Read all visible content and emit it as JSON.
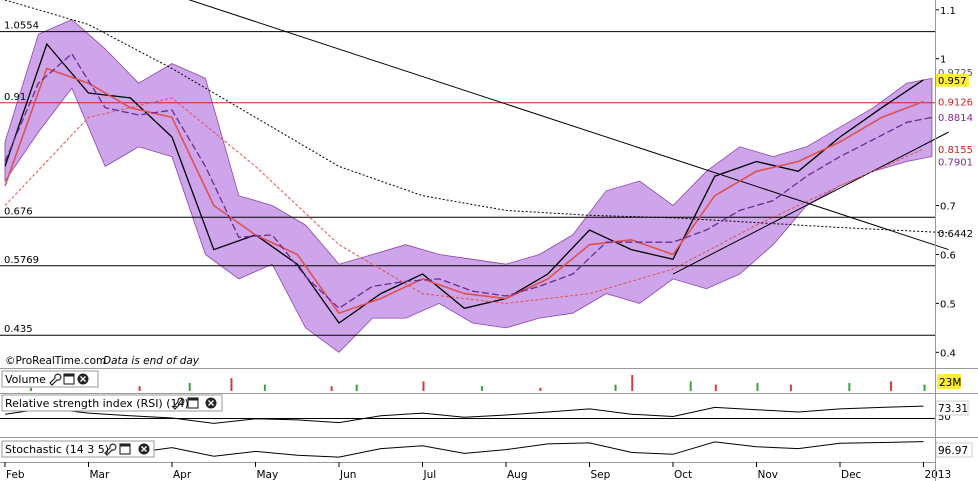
{
  "chart_data": [
    {
      "type": "line",
      "title": "",
      "ylim": [
        0.37,
        1.12
      ],
      "y_ticks": [
        {
          "value": 1.1,
          "label": "1.1"
        },
        {
          "value": 1.0,
          "label": "1"
        },
        {
          "value": 0.7,
          "label": "0.7"
        },
        {
          "value": 0.6,
          "label": "0.6"
        },
        {
          "value": 0.5,
          "label": "0.5"
        },
        {
          "value": 0.4,
          "label": "0.4"
        }
      ],
      "x_ticks": [
        {
          "t": 0,
          "label": "Feb"
        },
        {
          "t": 1,
          "label": "Mar"
        },
        {
          "t": 2,
          "label": "Apr"
        },
        {
          "t": 3,
          "label": "May"
        },
        {
          "t": 4,
          "label": "Jun"
        },
        {
          "t": 5,
          "label": "Jul"
        },
        {
          "t": 6,
          "label": "Aug"
        },
        {
          "t": 7,
          "label": "Sep"
        },
        {
          "t": 8,
          "label": "Oct"
        },
        {
          "t": 9,
          "label": "Nov"
        },
        {
          "t": 10,
          "label": "Dec"
        },
        {
          "t": 11,
          "label": "2013"
        }
      ],
      "horizontal_levels": [
        {
          "value": 1.0554,
          "label": "1.0554"
        },
        {
          "value": 0.91,
          "label": "0.91",
          "color": "#cc2222"
        },
        {
          "value": 0.676,
          "label": "0.676"
        },
        {
          "value": 0.5769,
          "label": "0.5769"
        },
        {
          "value": 0.435,
          "label": "0.435"
        }
      ],
      "right_labels": [
        {
          "value": 0.9725,
          "label": "0.9725",
          "color": "#555555"
        },
        {
          "value": 0.957,
          "label": "0.957",
          "bg": "#ffeb3b",
          "color": "#000000"
        },
        {
          "value": 0.9126,
          "label": "0.9126",
          "color": "#cc2222"
        },
        {
          "value": 0.8814,
          "label": "0.8814",
          "color": "#7a2c8c"
        },
        {
          "value": 0.8155,
          "label": "0.8155",
          "color": "#cc2222"
        },
        {
          "value": 0.7901,
          "label": "0.7901",
          "color": "#7a2c8c"
        },
        {
          "value": 0.6442,
          "label": "0.6442",
          "color": "#000000"
        }
      ],
      "series": [
        {
          "kind": "close",
          "t": [
            0,
            0.5,
            1,
            1.5,
            2,
            2.5,
            3,
            3.5,
            4,
            4.5,
            5,
            5.5,
            6,
            6.5,
            7,
            7.5,
            8,
            8.5,
            9,
            9.5,
            10,
            10.5,
            11
          ],
          "values": [
            0.78,
            1.03,
            0.93,
            0.92,
            0.84,
            0.61,
            0.64,
            0.58,
            0.46,
            0.52,
            0.56,
            0.49,
            0.51,
            0.56,
            0.65,
            0.61,
            0.59,
            0.76,
            0.79,
            0.77,
            0.84,
            0.9,
            0.957
          ]
        },
        {
          "kind": "ma_short",
          "t": [
            0,
            0.5,
            1,
            1.5,
            2,
            2.5,
            3,
            3.5,
            4,
            4.5,
            5,
            5.5,
            6,
            6.5,
            7,
            7.5,
            8,
            8.5,
            9,
            9.5,
            10,
            10.5,
            11
          ],
          "values": [
            0.74,
            0.98,
            0.95,
            0.9,
            0.88,
            0.7,
            0.64,
            0.6,
            0.48,
            0.51,
            0.55,
            0.52,
            0.51,
            0.55,
            0.62,
            0.63,
            0.6,
            0.72,
            0.77,
            0.79,
            0.83,
            0.88,
            0.9126
          ]
        },
        {
          "kind": "ma_long",
          "t": [
            0,
            1,
            2,
            3,
            4,
            5,
            6,
            7,
            8,
            9,
            10,
            11
          ],
          "values": [
            0.7,
            0.88,
            0.92,
            0.78,
            0.62,
            0.52,
            0.5,
            0.52,
            0.57,
            0.66,
            0.74,
            0.8155
          ]
        },
        {
          "kind": "long_ma_dotted",
          "t": [
            0,
            1,
            2,
            3,
            4,
            5,
            6,
            7,
            8,
            9,
            10,
            11.3
          ],
          "values": [
            1.12,
            1.07,
            0.98,
            0.88,
            0.78,
            0.72,
            0.69,
            0.68,
            0.675,
            0.665,
            0.655,
            0.6442
          ]
        }
      ],
      "bollinger": {
        "t": [
          0,
          0.4,
          0.8,
          1.2,
          1.6,
          2,
          2.4,
          2.8,
          3.2,
          3.6,
          4,
          4.4,
          4.8,
          5.2,
          5.6,
          6,
          6.4,
          6.8,
          7.2,
          7.6,
          8,
          8.4,
          8.8,
          9.2,
          9.6,
          10,
          10.4,
          10.8,
          11.1
        ],
        "upper": [
          0.83,
          1.05,
          1.08,
          1.02,
          0.95,
          0.99,
          0.96,
          0.72,
          0.7,
          0.66,
          0.58,
          0.6,
          0.62,
          0.6,
          0.59,
          0.58,
          0.6,
          0.64,
          0.73,
          0.75,
          0.7,
          0.77,
          0.82,
          0.8,
          0.82,
          0.86,
          0.9,
          0.95,
          0.96
        ],
        "lower": [
          0.75,
          0.85,
          0.94,
          0.78,
          0.82,
          0.8,
          0.6,
          0.55,
          0.58,
          0.45,
          0.4,
          0.47,
          0.47,
          0.5,
          0.46,
          0.45,
          0.47,
          0.48,
          0.52,
          0.5,
          0.55,
          0.53,
          0.56,
          0.62,
          0.7,
          0.74,
          0.77,
          0.79,
          0.8
        ]
      },
      "trendlines": [
        {
          "t": [
            1.5,
            11.3
          ],
          "values": [
            1.16,
            0.61
          ]
        },
        {
          "t": [
            8.0,
            11.3
          ],
          "values": [
            0.56,
            0.85
          ]
        }
      ],
      "annotations": [
        {
          "text": "©ProRealTime.com",
          "style": "normal"
        },
        {
          "text": "Data is end of day",
          "style": "italic"
        }
      ],
      "colors": {
        "band_fill": "#c99be8",
        "band_edge": "#8e44ad",
        "ma_short": "#e05050",
        "ma_mid": "#6a2c91",
        "level_red": "#cc2222"
      }
    },
    {
      "type": "bar",
      "name": "Volume",
      "value_label": "23M",
      "t": [
        0.3,
        1.6,
        2.2,
        2.7,
        3.1,
        3.9,
        4.2,
        5.0,
        5.7,
        6.4,
        7.3,
        7.5,
        8.2,
        8.5,
        9.0,
        9.4,
        10.1,
        10.6,
        11.0
      ],
      "values": [
        2,
        3,
        5,
        8,
        4,
        3,
        4,
        6,
        3,
        2,
        4,
        10,
        6,
        4,
        5,
        4,
        5,
        6,
        4
      ]
    },
    {
      "type": "line",
      "name": "Relative strength index (RSI) (14)",
      "value_label": "73.31",
      "scale_label": "50",
      "t": [
        0,
        0.5,
        1,
        1.5,
        2,
        2.5,
        3,
        3.5,
        4,
        4.5,
        5,
        5.5,
        6,
        6.5,
        7,
        7.5,
        8,
        8.5,
        9,
        9.5,
        10,
        10.5,
        11
      ],
      "values": [
        52,
        68,
        55,
        48,
        42,
        28,
        40,
        37,
        30,
        48,
        55,
        44,
        50,
        58,
        66,
        52,
        46,
        70,
        64,
        58,
        66,
        70,
        73.31
      ]
    },
    {
      "type": "line",
      "name": "Stochastic (14 3 5)",
      "value_label": "96.97",
      "t": [
        0,
        0.5,
        1,
        1.5,
        2,
        2.5,
        3,
        3.5,
        4,
        4.5,
        5,
        5.5,
        6,
        6.5,
        7,
        7.5,
        8,
        8.5,
        9,
        9.5,
        10,
        10.5,
        11
      ],
      "values": [
        40,
        85,
        50,
        35,
        65,
        20,
        45,
        25,
        15,
        60,
        75,
        35,
        55,
        85,
        90,
        40,
        30,
        95,
        70,
        60,
        88,
        92,
        96.97
      ]
    }
  ],
  "ui": {
    "volume_label": "Volume",
    "rsi_label": "Relative strength index (RSI) (14)",
    "stoch_label": "Stochastic (14 3 5)",
    "rsi_scale_label": "50",
    "icons": [
      "wrench-icon",
      "window-icon",
      "close-icon"
    ]
  }
}
